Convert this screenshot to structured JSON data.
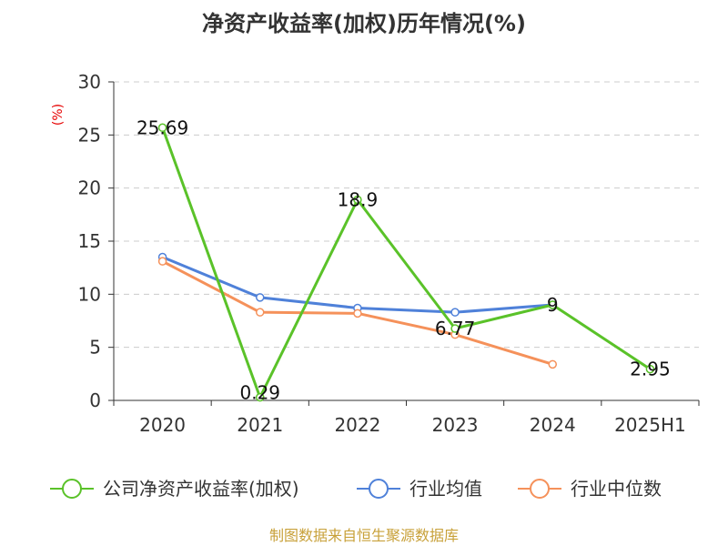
{
  "chart_data": {
    "type": "line",
    "title": "净资产收益率(加权)历年情况(%)",
    "ylabel": "(%)",
    "xlabel": "",
    "categories": [
      "2020",
      "2021",
      "2022",
      "2023",
      "2024",
      "2025H1"
    ],
    "ylim": [
      0,
      30
    ],
    "yticks": [
      0,
      5,
      10,
      15,
      20,
      25,
      30
    ],
    "grid": true,
    "legend_position": "bottom",
    "series": [
      {
        "name": "公司净资产收益率(加权)",
        "color": "#5ac229",
        "values": [
          25.69,
          0.29,
          18.9,
          6.77,
          9,
          2.95
        ],
        "labels": [
          "25.69",
          "0.29",
          "18.9",
          "6.77",
          "9",
          "2.95"
        ]
      },
      {
        "name": "行业均值",
        "color": "#4f81d9",
        "values": [
          13.5,
          9.7,
          8.7,
          8.3,
          9.0,
          null
        ]
      },
      {
        "name": "行业中位数",
        "color": "#f5915a",
        "values": [
          13.1,
          8.3,
          8.2,
          6.2,
          3.4,
          null
        ]
      }
    ]
  },
  "source": "制图数据来自恒生聚源数据库"
}
